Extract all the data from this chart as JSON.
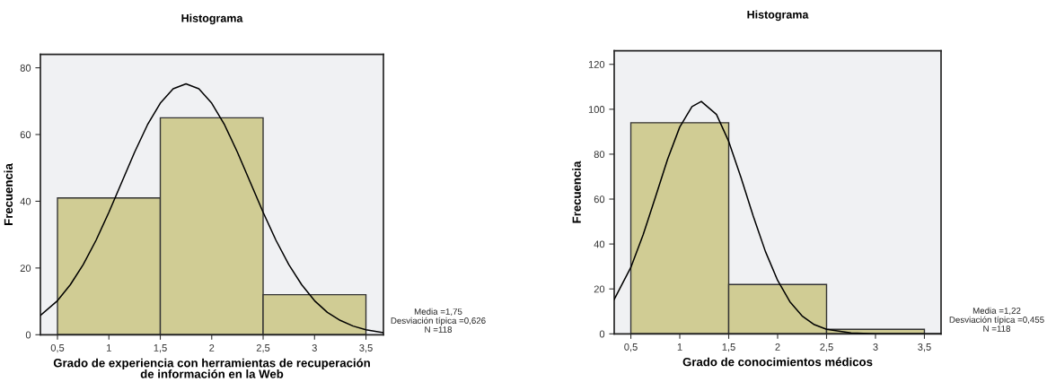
{
  "chart_data": [
    {
      "type": "histogram",
      "title": "Histograma",
      "xlabel": "Grado de experiencia con herramientas de recuperación\nde información en la Web",
      "ylabel": "Frecuencia",
      "bins": [
        0.5,
        1.5,
        2.5,
        3.5
      ],
      "values": [
        41,
        65,
        12
      ],
      "color": "#d0cc94",
      "series": [
        {
          "type": "line",
          "color": "#000000",
          "x": [
            0.334,
            0.5,
            0.625,
            0.75,
            0.875,
            1.0,
            1.125,
            1.25,
            1.375,
            1.5,
            1.625,
            1.75,
            1.875,
            2.0,
            2.125,
            2.25,
            2.375,
            2.5,
            2.625,
            2.75,
            2.875,
            3.0,
            3.125,
            3.25,
            3.375,
            3.5,
            3.67
          ],
          "values": [
            5.8,
            10.2,
            15.0,
            21.0,
            28.3,
            36.7,
            45.7,
            54.7,
            62.9,
            69.4,
            73.7,
            75.2,
            73.7,
            69.4,
            62.9,
            54.7,
            45.7,
            36.7,
            28.3,
            21.0,
            15.0,
            10.2,
            6.7,
            4.3,
            2.6,
            1.5,
            0.6
          ]
        }
      ],
      "xlim": [
        0.334,
        3.67
      ],
      "ylim": [
        0,
        84
      ],
      "xticks": [
        {
          "value": 0.5,
          "label": "0,5"
        },
        1,
        {
          "value": 1.5,
          "label": "1,5"
        },
        2,
        {
          "value": 2.5,
          "label": "2,5"
        },
        3,
        {
          "value": 3.5,
          "label": "3,5"
        }
      ],
      "yticks": [
        0,
        20,
        40,
        60,
        80
      ],
      "grid": false,
      "legend": false,
      "annotations": [
        "Media =1,75",
        "Desviación típica =0,626",
        "N =118"
      ]
    },
    {
      "type": "histogram",
      "title": "Histograma",
      "xlabel": "Grado de conocimientos médicos",
      "ylabel": "Frecuencia",
      "bins": [
        0.5,
        1.5,
        2.5,
        3.5
      ],
      "values": [
        94,
        22,
        2
      ],
      "color": "#d0cc94",
      "series": [
        {
          "type": "line",
          "color": "#000000",
          "x": [
            0.33,
            0.5,
            0.625,
            0.75,
            0.875,
            1.0,
            1.125,
            1.22,
            1.375,
            1.5,
            1.625,
            1.75,
            1.875,
            2.0,
            2.125,
            2.25,
            2.375,
            2.5,
            2.75,
            3.0,
            3.67
          ],
          "values": [
            15.3,
            29.6,
            44.0,
            60.7,
            77.7,
            92.1,
            101.2,
            103.5,
            97.7,
            85.7,
            69.7,
            52.5,
            36.7,
            23.8,
            14.3,
            8.0,
            4.1,
            2.0,
            0.4,
            0,
            0
          ]
        }
      ],
      "xlim": [
        0.33,
        3.67
      ],
      "ylim": [
        0,
        126
      ],
      "xticks": [
        {
          "value": 0.5,
          "label": "0,5"
        },
        1,
        {
          "value": 1.5,
          "label": "1,5"
        },
        2,
        {
          "value": 2.5,
          "label": "2,5"
        },
        3,
        {
          "value": 3.5,
          "label": "3,5"
        }
      ],
      "yticks": [
        0,
        20,
        40,
        60,
        80,
        100,
        120
      ],
      "grid": false,
      "legend": false,
      "annotations": [
        "Media =1,22",
        "Desviación típica =0,455",
        "N =118"
      ]
    }
  ]
}
